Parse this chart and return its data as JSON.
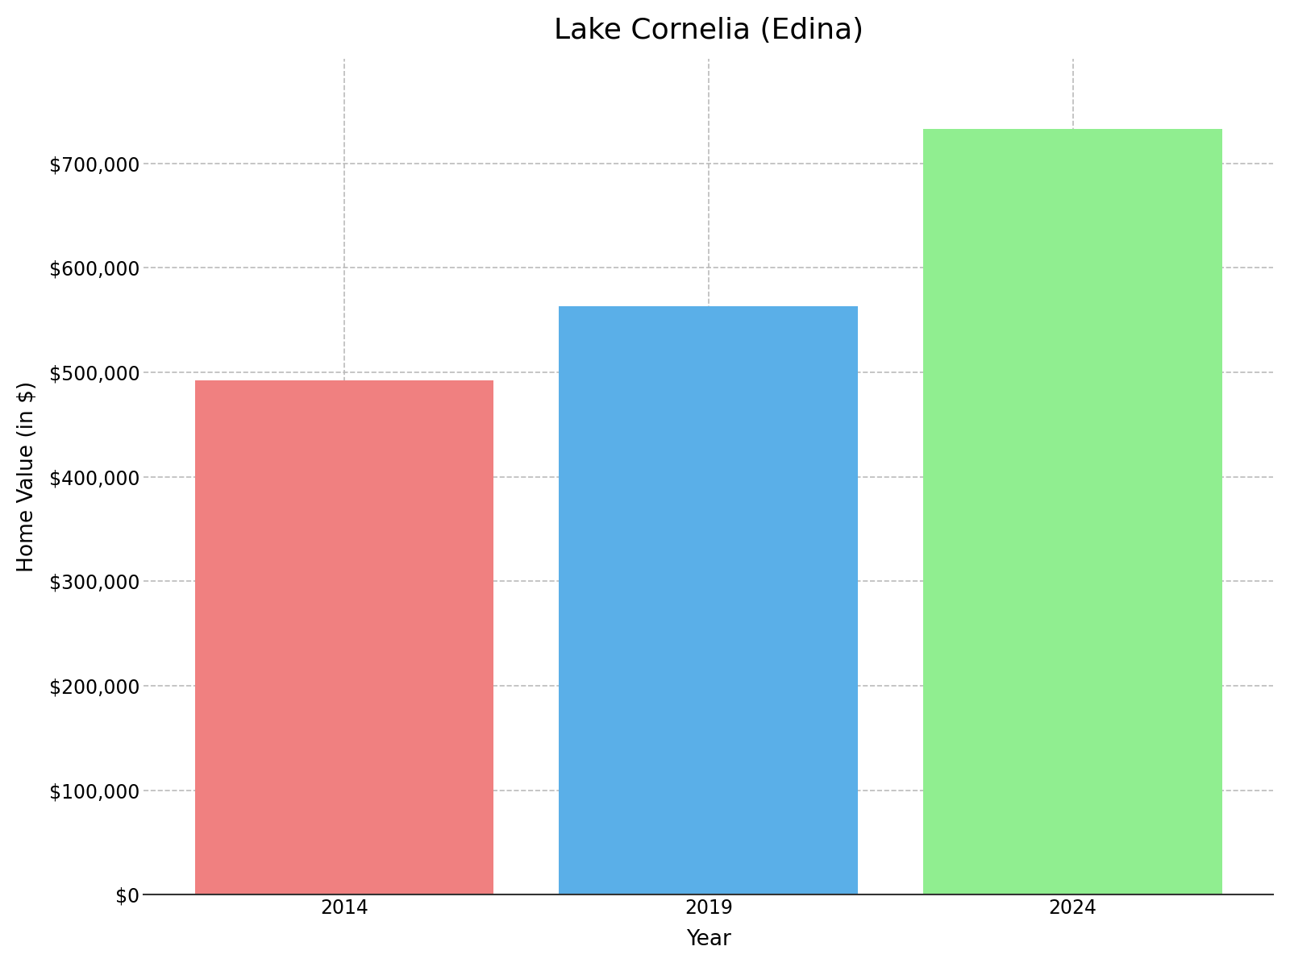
{
  "title": "Lake Cornelia (Edina)",
  "years": [
    "2014",
    "2019",
    "2024"
  ],
  "values": [
    492000,
    563000,
    733000
  ],
  "bar_colors": [
    "#F08080",
    "#5AAFE8",
    "#90EE90"
  ],
  "xlabel": "Year",
  "ylabel": "Home Value (in $)",
  "ylim": [
    0,
    800000
  ],
  "yticks": [
    0,
    100000,
    200000,
    300000,
    400000,
    500000,
    600000,
    700000
  ],
  "ytick_labels": [
    "$0",
    "$100,000",
    "$200,000",
    "$300,000",
    "$400,000",
    "$500,000",
    "$600,000",
    "$700,000"
  ],
  "title_fontsize": 26,
  "axis_label_fontsize": 19,
  "tick_fontsize": 17,
  "bar_width": 0.82,
  "background_color": "#ffffff",
  "grid_color": "#bbbbbb",
  "grid_linestyle": "--",
  "spine_color": "#333333",
  "xlim": [
    -0.55,
    2.55
  ]
}
